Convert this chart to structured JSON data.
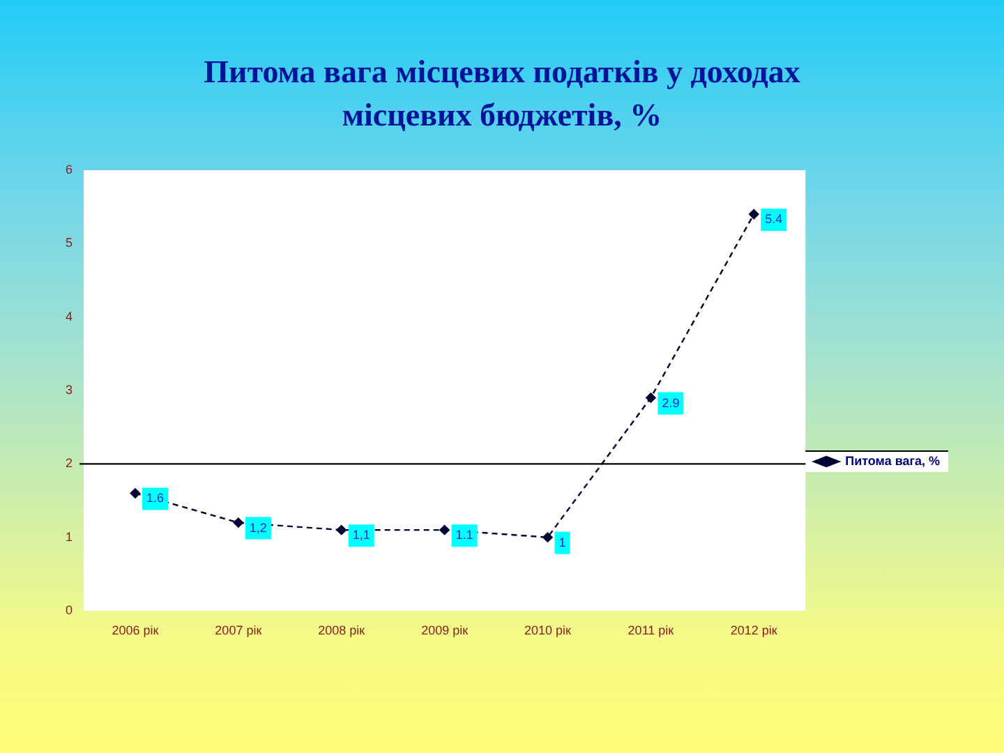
{
  "chart_data": {
    "type": "line",
    "title": "Питома вага місцевих податків у доходах місцевих бюджетів, %",
    "categories": [
      "2006 рік",
      "2007 рік",
      "2008 рік",
      "2009 рік",
      "2010 рік",
      "2011 рік",
      "2012 рік"
    ],
    "series": [
      {
        "name": "Питома вага, %",
        "color": "#000033",
        "values": [
          1.6,
          1.2,
          1.1,
          1.1,
          1,
          2.9,
          5.4
        ],
        "value_labels": [
          "1.6",
          "1,2",
          "1,1",
          "1.1",
          "1",
          "2.9",
          "5.4"
        ]
      }
    ],
    "ylim": [
      0,
      6
    ],
    "yticks": [
      0,
      1,
      2,
      3,
      4,
      5,
      6
    ],
    "grid": false,
    "legend": "right",
    "marker": "diamond",
    "line_style": "dashed",
    "ref_lines": [
      {
        "axis": "y",
        "value": 2,
        "color": "#000000"
      }
    ]
  }
}
